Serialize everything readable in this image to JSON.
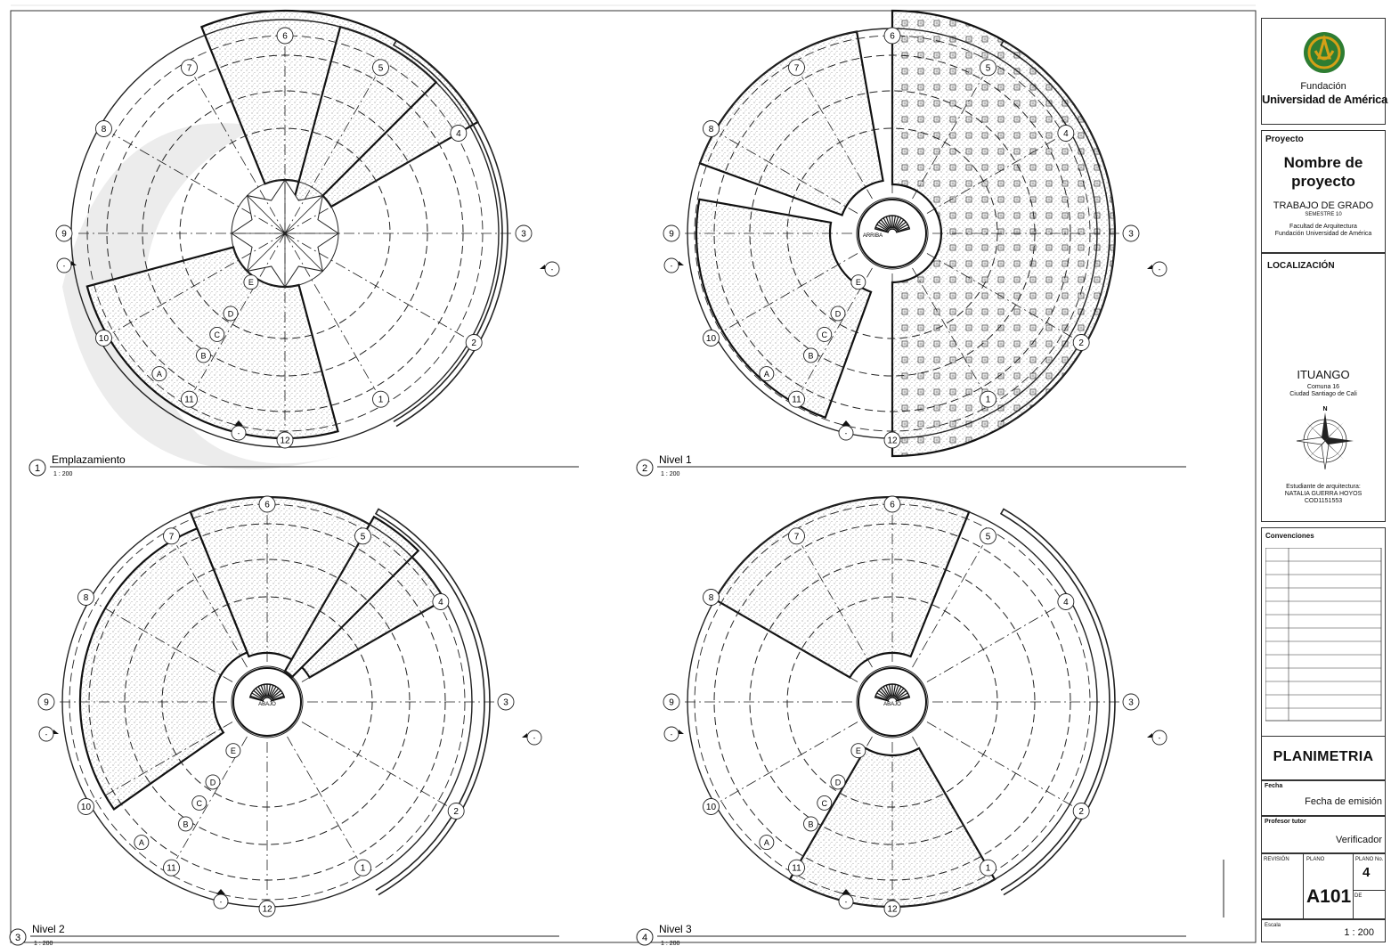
{
  "views": [
    {
      "number": "1",
      "title": "Emplazamiento",
      "scale": "1 : 200",
      "type": "site"
    },
    {
      "number": "2",
      "title": "Nivel 1",
      "scale": "1 : 200",
      "type": "level1"
    },
    {
      "number": "3",
      "title": "Nivel 2",
      "scale": "1 : 200",
      "type": "level2"
    },
    {
      "number": "4",
      "title": "Nivel 3",
      "scale": "1 : 200",
      "type": "level3"
    }
  ],
  "grid_numbers": [
    "1",
    "2",
    "3",
    "4",
    "5",
    "6",
    "7",
    "8",
    "9",
    "10",
    "11",
    "12"
  ],
  "ring_letters": [
    "A",
    "B",
    "C",
    "D",
    "E"
  ],
  "labels": {
    "down": "ABAJO",
    "up": "ARRIBA",
    "section_mark": "-"
  },
  "titleblock": {
    "institution_line1": "Fundación",
    "institution_line2": "Universidad de América",
    "project_label": "Proyecto",
    "project_name_line1": "Nombre de",
    "project_name_line2": "proyecto",
    "project_type": "TRABAJO DE GRADO",
    "semester": "SEMESTRE 10",
    "faculty": "Facultad de Arquitectura",
    "university": "Fundación Universidad de América",
    "location_label": "LOCALIZACIÓN",
    "location_name": "ITUANGO",
    "location_sub1": "Comuna 16",
    "location_sub2": "Ciudad Santiago de Cali",
    "north_label": "N",
    "student_label": "Estudiante de arquitectura:",
    "student_name": "NATALIA GUERRA HOYOS",
    "student_code": "COD1151553",
    "conventions_label": "Convenciones",
    "sheet_title": "PLANIMETRIA",
    "date_label": "Fecha",
    "date_value": "Fecha de emisión",
    "tutor_label": "Profesor tutor",
    "tutor_value": "Verificador",
    "revision_label": "REVISIÓN",
    "plano_label": "PLANO",
    "plano_no_label": "PLANO No.",
    "sheet_code": "A101",
    "sheet_number": "4",
    "de_label": "DE",
    "scale_label": "Escala",
    "scale_value": "1 : 200"
  },
  "colors": {
    "line": "#222222",
    "logo_green": "#2e7d32",
    "logo_gold": "#d4a017",
    "hatch": "#e6e6e6"
  }
}
